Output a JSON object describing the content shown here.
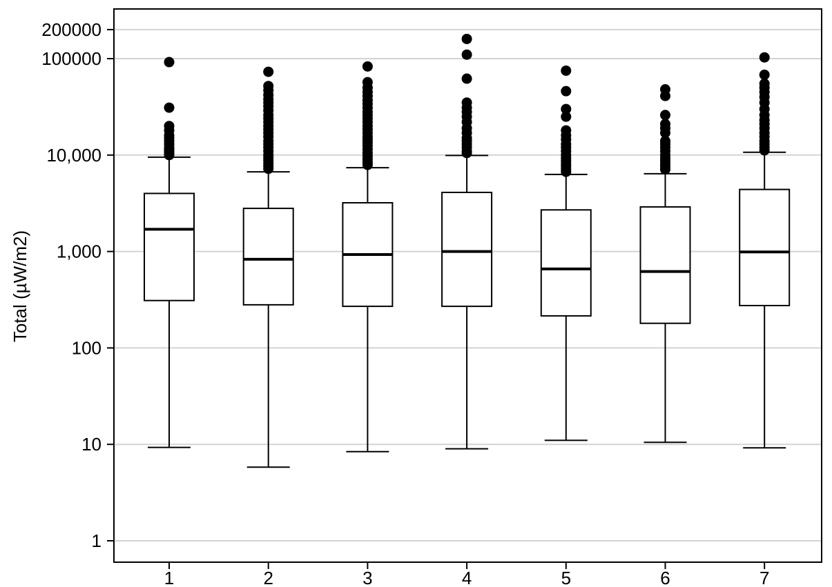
{
  "chart_data": {
    "type": "box",
    "title": "",
    "xlabel": "",
    "ylabel": "Total (µW/m2)",
    "y_scale": "log",
    "ylim": [
      0.7,
      330000
    ],
    "grid": true,
    "legend": "none",
    "colors": {
      "grid": "#d3d3d3",
      "frame": "#000000",
      "box_fill": "#ffffff",
      "marks": "#000000"
    },
    "y_ticks": [
      {
        "value": 1,
        "label": "1"
      },
      {
        "value": 10,
        "label": "10"
      },
      {
        "value": 100,
        "label": "100"
      },
      {
        "value": 1000,
        "label": "1,000"
      },
      {
        "value": 10000,
        "label": "10,000"
      },
      {
        "value": 100000,
        "label": "100000"
      },
      {
        "value": 200000,
        "label": "200000"
      }
    ],
    "categories": [
      "1",
      "2",
      "3",
      "4",
      "5",
      "6",
      "7"
    ],
    "boxes": [
      {
        "category": "1",
        "whisker_low": 9.3,
        "q1": 310,
        "median": 1700,
        "q3": 4000,
        "whisker_high": 9500,
        "outliers": [
          92000,
          31000,
          20000,
          18000,
          16000,
          15000,
          14000,
          13000,
          12000,
          11500,
          11000,
          10500,
          10000
        ]
      },
      {
        "category": "2",
        "whisker_low": 5.8,
        "q1": 280,
        "median": 830,
        "q3": 2800,
        "whisker_high": 6700,
        "outliers": [
          73000,
          52000,
          47000,
          42000,
          38000,
          35000,
          32000,
          29000,
          26000,
          24000,
          22000,
          20000,
          18500,
          17000,
          15500,
          14000,
          13000,
          12000,
          11000,
          10000,
          9400,
          8800,
          8200,
          7700,
          7200
        ]
      },
      {
        "category": "3",
        "whisker_low": 8.4,
        "q1": 270,
        "median": 930,
        "q3": 3200,
        "whisker_high": 7400,
        "outliers": [
          83000,
          57000,
          50000,
          45000,
          41000,
          37000,
          34000,
          31000,
          28000,
          26000,
          24000,
          22000,
          20000,
          18500,
          17000,
          15500,
          14500,
          13500,
          12500,
          11500,
          10500,
          9700,
          9000,
          8400,
          7900
        ]
      },
      {
        "category": "4",
        "whisker_low": 9.0,
        "q1": 270,
        "median": 1000,
        "q3": 4100,
        "whisker_high": 9900,
        "outliers": [
          160000,
          110000,
          62000,
          35000,
          31000,
          28000,
          25000,
          22000,
          19000,
          17000,
          15000,
          14000,
          13000,
          12000,
          11000,
          10500
        ]
      },
      {
        "category": "5",
        "whisker_low": 11,
        "q1": 215,
        "median": 660,
        "q3": 2700,
        "whisker_high": 6300,
        "outliers": [
          75000,
          46000,
          30000,
          25000,
          18000,
          16000,
          14500,
          13000,
          12000,
          11000,
          10000,
          9300,
          8700,
          8100,
          7600,
          7100,
          6700
        ]
      },
      {
        "category": "6",
        "whisker_low": 10.5,
        "q1": 180,
        "median": 620,
        "q3": 2900,
        "whisker_high": 6400,
        "outliers": [
          48000,
          41000,
          26000,
          21000,
          19000,
          17000,
          14000,
          13000,
          12000,
          11000,
          10000,
          9300,
          8700,
          8100,
          7600,
          7100
        ]
      },
      {
        "category": "7",
        "whisker_low": 9.2,
        "q1": 275,
        "median": 990,
        "q3": 4400,
        "whisker_high": 10700,
        "outliers": [
          103000,
          68000,
          55000,
          50000,
          45000,
          40000,
          35000,
          30000,
          26000,
          23000,
          21000,
          19000,
          17000,
          15500,
          14000,
          13000,
          12000,
          11200
        ]
      }
    ]
  }
}
